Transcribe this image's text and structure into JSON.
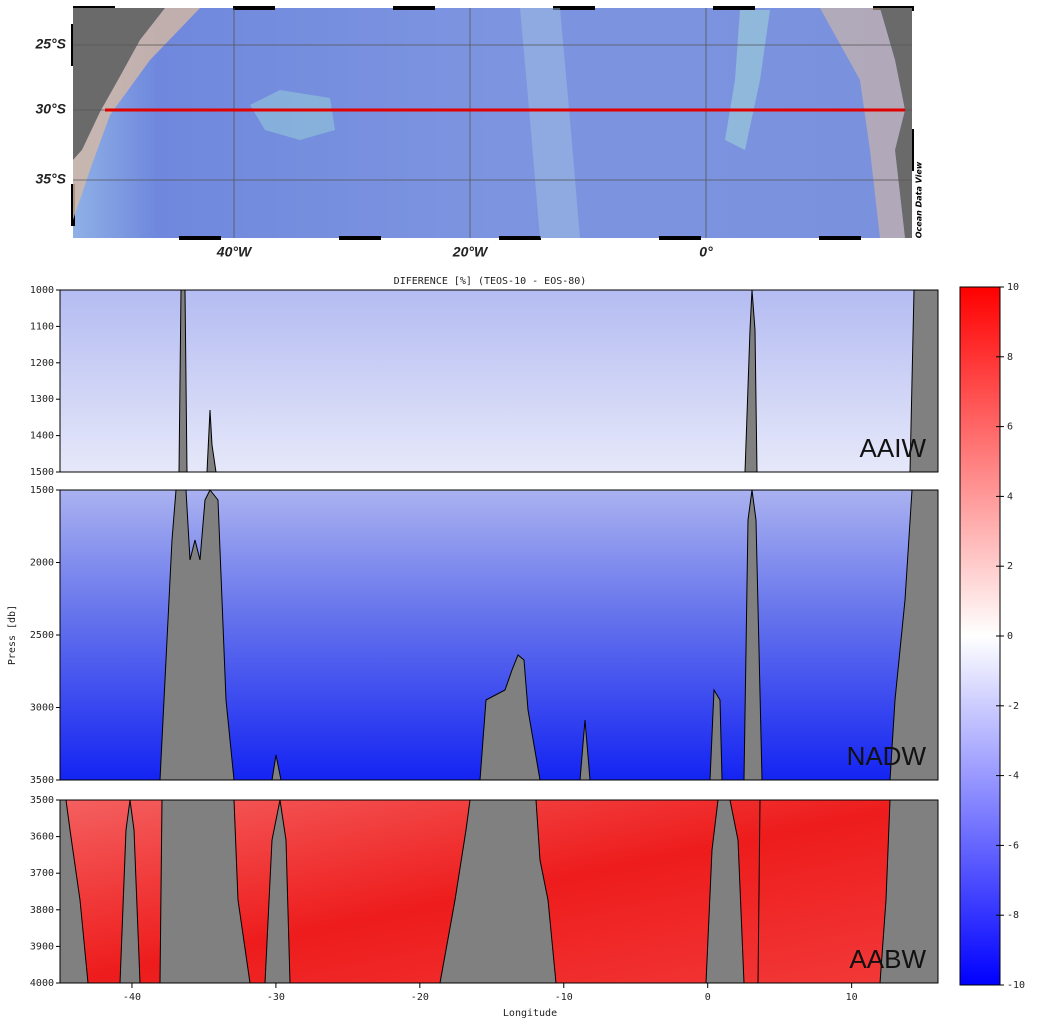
{
  "map": {
    "lat_labels": [
      "25°S",
      "30°S",
      "35°S"
    ],
    "lon_labels": [
      "40°W",
      "20°W",
      "0°"
    ],
    "watermark": "Ocean Data View"
  },
  "chart_data": {
    "type": "section",
    "title": "DIFERENCE [%] (TEOS-10 - EOS-80)",
    "x_label": "Longitude",
    "y_label": "Press [db]",
    "xlim": [
      -45,
      16
    ],
    "xticks": [
      -40,
      -30,
      -20,
      -10,
      0,
      10
    ],
    "panels": [
      {
        "name": "AAIW",
        "ylim": [
          1000,
          1500
        ],
        "yticks": [
          1000,
          1100,
          1200,
          1300,
          1400,
          1500
        ]
      },
      {
        "name": "NADW",
        "ylim": [
          1500,
          3500
        ],
        "yticks": [
          1500,
          2000,
          2500,
          3000,
          3500
        ]
      },
      {
        "name": "AABW",
        "ylim": [
          3500,
          4000
        ],
        "yticks": [
          3500,
          3600,
          3700,
          3800,
          3900,
          4000
        ]
      }
    ],
    "colorbar": {
      "lim": [
        -10,
        10
      ],
      "ticks": [
        10,
        8,
        6,
        4,
        2,
        0,
        -2,
        -4,
        -6,
        -8,
        -10
      ]
    }
  }
}
